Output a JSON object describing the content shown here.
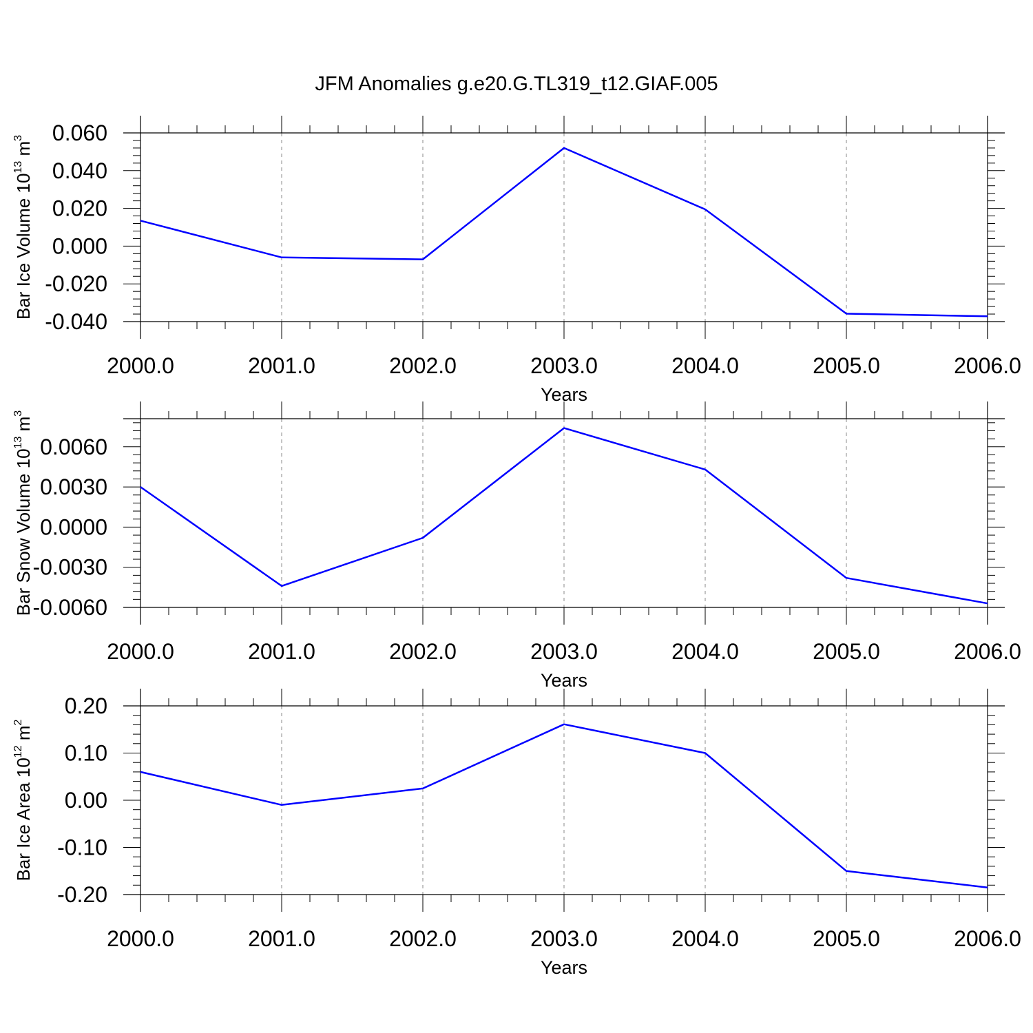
{
  "title": "JFM Anomalies g.e20.G.TL319_t12.GIAF.005",
  "colors": {
    "line": "#0000ff",
    "frame": "#000000",
    "grid": "#888888"
  },
  "chart_data": [
    {
      "type": "line",
      "ylabel": {
        "text": "Bar Ice Volume 10",
        "exp": "13",
        "unit": " m",
        "unit_exp": "3"
      },
      "xlabel": "Years",
      "x": [
        2000,
        2001,
        2002,
        2003,
        2004,
        2005,
        2006
      ],
      "x_tick_labels": [
        "2000.0",
        "2001.0",
        "2002.0",
        "2003.0",
        "2004.0",
        "2005.0",
        "2006.0"
      ],
      "y_ticks": [
        -0.04,
        -0.02,
        0.0,
        0.02,
        0.04,
        0.06
      ],
      "y_tick_labels": [
        "-0.040",
        "-0.020",
        "0.000",
        "0.020",
        "0.040",
        "0.060"
      ],
      "ylim": [
        -0.04,
        0.06
      ],
      "xlim": [
        2000,
        2006
      ],
      "values": [
        0.0135,
        -0.006,
        -0.007,
        0.052,
        0.0195,
        -0.0358,
        -0.0372
      ],
      "vertical_grid": true
    },
    {
      "type": "line",
      "ylabel": {
        "text": "Bar Snow Volume 10",
        "exp": "13",
        "unit": " m",
        "unit_exp": "3"
      },
      "xlabel": "Years",
      "x": [
        2000,
        2001,
        2002,
        2003,
        2004,
        2005,
        2006
      ],
      "x_tick_labels": [
        "2000.0",
        "2001.0",
        "2002.0",
        "2003.0",
        "2004.0",
        "2005.0",
        "2006.0"
      ],
      "y_ticks": [
        -0.006,
        -0.003,
        0.0,
        0.003,
        0.006
      ],
      "y_tick_labels": [
        "-0.0060",
        "-0.0030",
        "0.0000",
        "0.0030",
        "0.0060"
      ],
      "ylim": [
        -0.006,
        0.0081
      ],
      "xlim": [
        2000,
        2006
      ],
      "values": [
        0.003,
        -0.0044,
        -0.0008,
        0.0074,
        0.0043,
        -0.0038,
        -0.0057
      ],
      "vertical_grid": true
    },
    {
      "type": "line",
      "ylabel": {
        "text": "Bar Ice Area 10",
        "exp": "12",
        "unit": " m",
        "unit_exp": "2"
      },
      "xlabel": "Years",
      "x": [
        2000,
        2001,
        2002,
        2003,
        2004,
        2005,
        2006
      ],
      "x_tick_labels": [
        "2000.0",
        "2001.0",
        "2002.0",
        "2003.0",
        "2004.0",
        "2005.0",
        "2006.0"
      ],
      "y_ticks": [
        -0.2,
        -0.1,
        0.0,
        0.1,
        0.2
      ],
      "y_tick_labels": [
        "-0.20",
        "-0.10",
        "0.00",
        "0.10",
        "0.20"
      ],
      "ylim": [
        -0.2,
        0.2
      ],
      "xlim": [
        2000,
        2006
      ],
      "values": [
        0.06,
        -0.01,
        0.025,
        0.161,
        0.1,
        -0.15,
        -0.185
      ],
      "vertical_grid": true
    }
  ]
}
